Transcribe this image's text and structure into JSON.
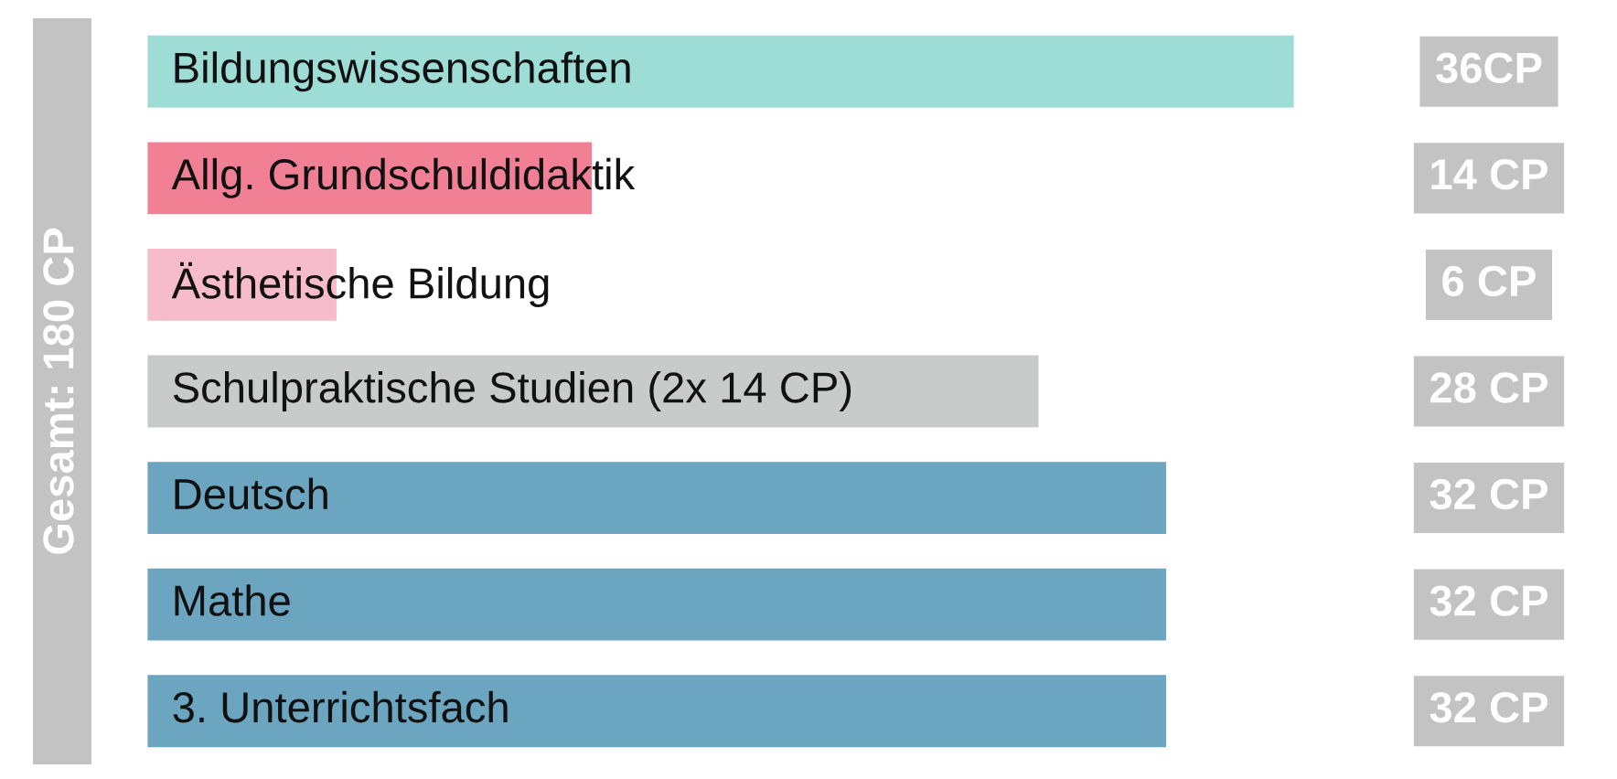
{
  "chart_data": {
    "type": "bar",
    "orientation": "horizontal",
    "categories": [
      "Bildungswissenschaften",
      "Allg. Grundschuldidaktik",
      "Ästhetische Bildung",
      "Schulpraktische Studien (2x 14 CP)",
      "Deutsch",
      "Mathe",
      "3. Unterrichtsfach"
    ],
    "values": [
      36,
      14,
      6,
      28,
      32,
      32,
      32
    ],
    "colors": [
      "#9edcd6",
      "#f18095",
      "#f7bccb",
      "#c9cbcb",
      "#6ba5bf",
      "#6ba5bf",
      "#6ba5bf"
    ],
    "value_labels": [
      "36CP",
      "14 CP",
      "6 CP",
      "28 CP",
      "32 CP",
      "32 CP",
      "32 CP"
    ],
    "annotations": [
      "Gesamt: 180 CP"
    ],
    "legend": false
  }
}
